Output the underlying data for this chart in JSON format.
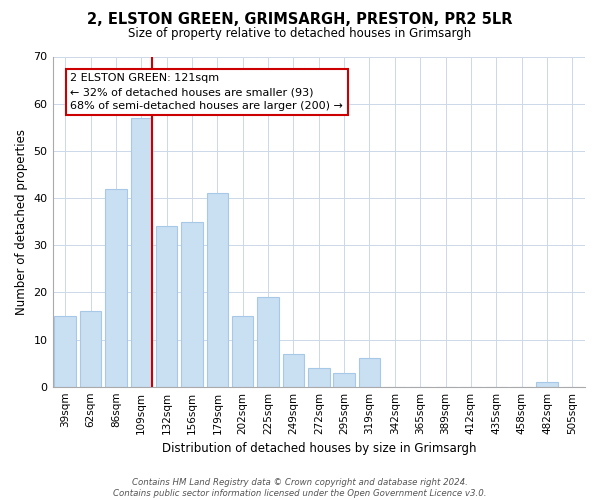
{
  "title": "2, ELSTON GREEN, GRIMSARGH, PRESTON, PR2 5LR",
  "subtitle": "Size of property relative to detached houses in Grimsargh",
  "xlabel": "Distribution of detached houses by size in Grimsargh",
  "ylabel": "Number of detached properties",
  "bin_labels": [
    "39sqm",
    "62sqm",
    "86sqm",
    "109sqm",
    "132sqm",
    "156sqm",
    "179sqm",
    "202sqm",
    "225sqm",
    "249sqm",
    "272sqm",
    "295sqm",
    "319sqm",
    "342sqm",
    "365sqm",
    "389sqm",
    "412sqm",
    "435sqm",
    "458sqm",
    "482sqm",
    "505sqm"
  ],
  "bar_heights": [
    15,
    16,
    42,
    57,
    34,
    35,
    41,
    15,
    19,
    7,
    4,
    3,
    6,
    0,
    0,
    0,
    0,
    0,
    0,
    1,
    0
  ],
  "bar_color": "#c9dff2",
  "bar_edge_color": "#a8c8e8",
  "highlight_color": "#cc0000",
  "highlight_line_bar_index": 3,
  "annotation_title": "2 ELSTON GREEN: 121sqm",
  "annotation_line1": "← 32% of detached houses are smaller (93)",
  "annotation_line2": "68% of semi-detached houses are larger (200) →",
  "annotation_box_color": "#ffffff",
  "annotation_box_edge": "#cc0000",
  "ylim": [
    0,
    70
  ],
  "yticks": [
    0,
    10,
    20,
    30,
    40,
    50,
    60,
    70
  ],
  "footer_line1": "Contains HM Land Registry data © Crown copyright and database right 2024.",
  "footer_line2": "Contains public sector information licensed under the Open Government Licence v3.0."
}
